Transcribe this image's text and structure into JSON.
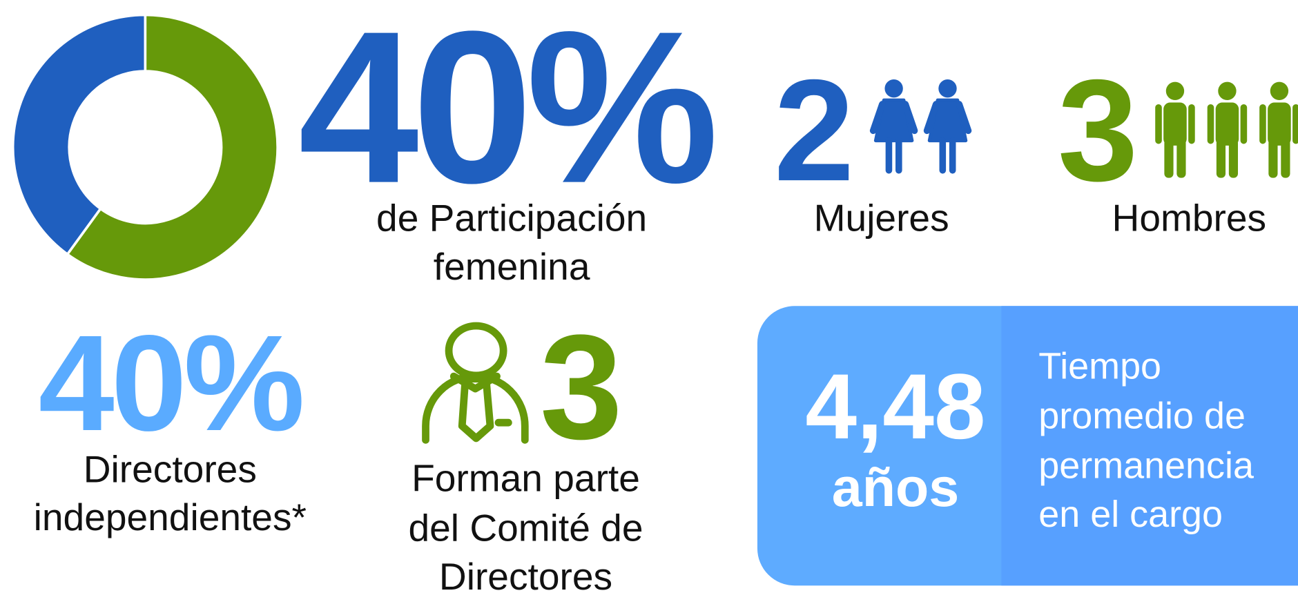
{
  "chart_data": {
    "type": "pie",
    "values": [
      40,
      60
    ],
    "colors": [
      "#1f5fbf",
      "#66990a"
    ]
  },
  "participation": {
    "label": "40%",
    "caption": [
      "de Participación",
      "femenina"
    ]
  },
  "women": {
    "value": 2,
    "caption": "Mujeres"
  },
  "men": {
    "value": 3,
    "caption": "Hombres"
  },
  "independent": {
    "label": "40%",
    "caption": [
      "Directores",
      "independientes*"
    ]
  },
  "committee": {
    "value": 3,
    "caption": [
      "Forman parte",
      "del Comité de",
      "Directores"
    ]
  },
  "tenure": {
    "label": "4,48",
    "unit": "años",
    "caption": [
      "Tiempo",
      "promedio de",
      "permanencia",
      "en el cargo"
    ]
  }
}
